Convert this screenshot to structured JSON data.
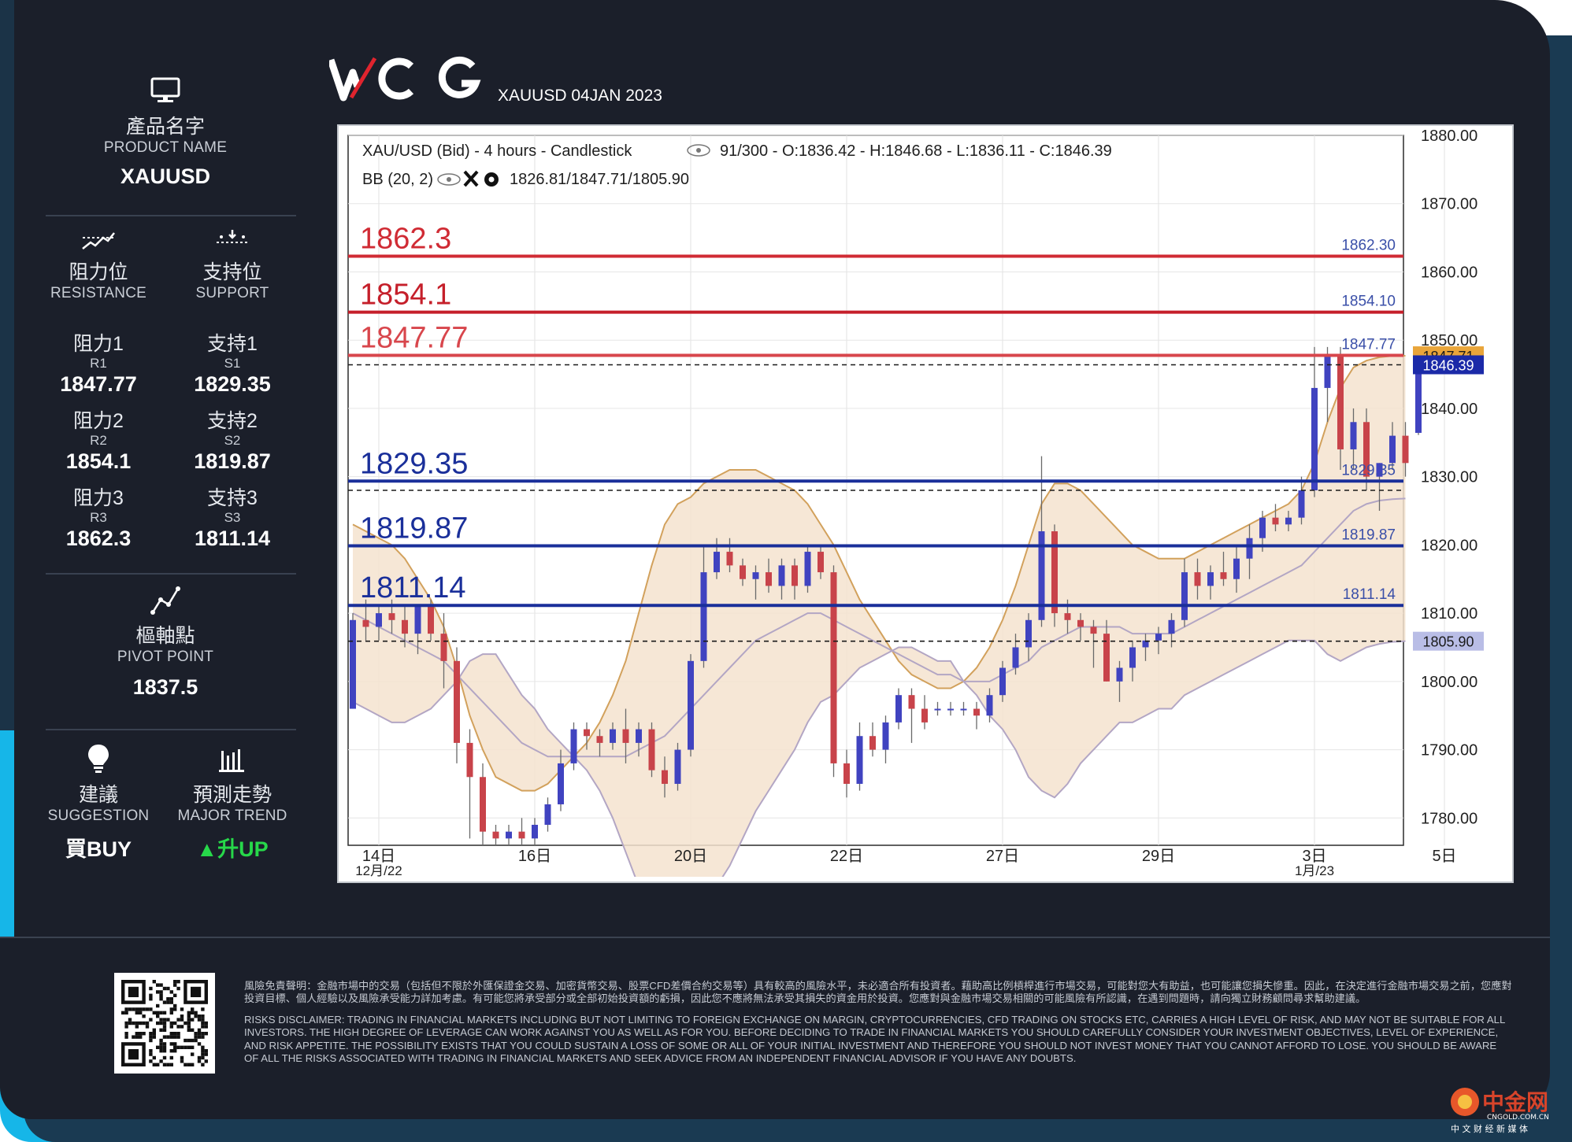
{
  "header": {
    "brand": "WCG",
    "subtitle": "XAUUSD 04JAN 2023"
  },
  "product": {
    "label_zh": "產品名字",
    "label_en": "PRODUCT NAME",
    "value": "XAUUSD"
  },
  "resistance": {
    "label_zh": "阻力位",
    "label_en": "RESISTANCE",
    "items": [
      {
        "zh": "阻力1",
        "code": "R1",
        "value": "1847.77"
      },
      {
        "zh": "阻力2",
        "code": "R2",
        "value": "1854.1"
      },
      {
        "zh": "阻力3",
        "code": "R3",
        "value": "1862.3"
      }
    ]
  },
  "support": {
    "label_zh": "支持位",
    "label_en": "SUPPORT",
    "items": [
      {
        "zh": "支持1",
        "code": "S1",
        "value": "1829.35"
      },
      {
        "zh": "支持2",
        "code": "S2",
        "value": "1819.87"
      },
      {
        "zh": "支持3",
        "code": "S3",
        "value": "1811.14"
      }
    ]
  },
  "pivot": {
    "label_zh": "樞軸點",
    "label_en": "PIVOT POINT",
    "value": "1837.5"
  },
  "suggestion": {
    "label_zh": "建議",
    "label_en": "SUGGESTION",
    "value": "買BUY"
  },
  "trend": {
    "label_zh": "預測走勢",
    "label_en": "MAJOR TREND",
    "value": "▲升UP",
    "color": "#27d84a"
  },
  "chart_data": {
    "type": "candlestick",
    "info_line1": "XAU/USD (Bid) - 4 hours - Candlestick",
    "info_line1_b": "91/300 - O:1836.42 - H:1846.68 - L:1836.11 - C:1846.39",
    "info_line2": "BB (20, 2)",
    "info_line2_b": "1826.81/1847.71/1805.90",
    "ylim": [
      1776,
      1880
    ],
    "yticks": [
      1780,
      1790,
      1800,
      1810,
      1820,
      1830,
      1840,
      1850,
      1860,
      1870,
      1880
    ],
    "ytick_labels": [
      "1780.00",
      "1790.00",
      "1800.00",
      "1810.00",
      "1820.00",
      "1830.00",
      "1840.00",
      "1850.00",
      "1860.00",
      "1870.00",
      "1880.00"
    ],
    "xticks": [
      {
        "index": 2,
        "label": "14日",
        "sub": "12月/22"
      },
      {
        "index": 14,
        "label": "16日",
        "sub": ""
      },
      {
        "index": 26,
        "label": "20日",
        "sub": ""
      },
      {
        "index": 38,
        "label": "22日",
        "sub": ""
      },
      {
        "index": 50,
        "label": "27日",
        "sub": ""
      },
      {
        "index": 62,
        "label": "29日",
        "sub": ""
      },
      {
        "index": 74,
        "label": "3日",
        "sub": "1月/23"
      },
      {
        "index": 84,
        "label": "5日",
        "sub": ""
      }
    ],
    "levels": [
      {
        "value": 1862.3,
        "label": "1862.3",
        "right_label": "1862.30",
        "color": "#d02b34"
      },
      {
        "value": 1854.1,
        "label": "1854.1",
        "right_label": "1854.10",
        "color": "#c51f2a"
      },
      {
        "value": 1847.77,
        "label": "1847.77",
        "right_label": "1847.77",
        "color": "#d8464c"
      },
      {
        "value": 1829.35,
        "label": "1829.35",
        "right_label": "1829.35",
        "color": "#1a2f9a"
      },
      {
        "value": 1819.87,
        "label": "1819.87",
        "right_label": "1819.87",
        "color": "#1a2f9a"
      },
      {
        "value": 1811.14,
        "label": "1811.14",
        "right_label": "1811.14",
        "color": "#1a2f9a"
      }
    ],
    "dashed": [
      1846.39,
      1828.0,
      1805.9
    ],
    "axis_badges": [
      {
        "value": 1847.71,
        "text": "1847.71",
        "bg": "#e9a53a",
        "fg": "#1b1b1b"
      },
      {
        "value": 1846.39,
        "text": "1846.39",
        "bg": "#1b2aa8",
        "fg": "#ffffff"
      },
      {
        "value": 1805.9,
        "text": "1805.90",
        "bg": "#b9bde6",
        "fg": "#1b1b1b"
      }
    ],
    "candles": [
      [
        1796,
        1810,
        1796,
        1809
      ],
      [
        1809,
        1812,
        1806,
        1808
      ],
      [
        1808,
        1811,
        1806,
        1810
      ],
      [
        1810,
        1812,
        1807,
        1809
      ],
      [
        1809,
        1811,
        1805,
        1807
      ],
      [
        1807,
        1811,
        1804,
        1811
      ],
      [
        1811,
        1812,
        1806,
        1807
      ],
      [
        1807,
        1810,
        1799,
        1803
      ],
      [
        1803,
        1805,
        1788,
        1791
      ],
      [
        1791,
        1793,
        1777,
        1786
      ],
      [
        1786,
        1788,
        1776,
        1778
      ],
      [
        1778,
        1779,
        1776,
        1777
      ],
      [
        1777,
        1779,
        1776,
        1778
      ],
      [
        1778,
        1780,
        1776,
        1777
      ],
      [
        1777,
        1780,
        1776,
        1779
      ],
      [
        1779,
        1783,
        1778,
        1782
      ],
      [
        1782,
        1790,
        1781,
        1788
      ],
      [
        1788,
        1794,
        1787,
        1793
      ],
      [
        1793,
        1794,
        1790,
        1792
      ],
      [
        1792,
        1793,
        1789,
        1791
      ],
      [
        1791,
        1794,
        1790,
        1793
      ],
      [
        1793,
        1796,
        1788,
        1791
      ],
      [
        1791,
        1794,
        1789,
        1793
      ],
      [
        1793,
        1794,
        1786,
        1787
      ],
      [
        1787,
        1789,
        1783,
        1785
      ],
      [
        1785,
        1791,
        1784,
        1790
      ],
      [
        1790,
        1804,
        1789,
        1803
      ],
      [
        1803,
        1820,
        1802,
        1816
      ],
      [
        1816,
        1821,
        1815,
        1819
      ],
      [
        1819,
        1821,
        1816,
        1817
      ],
      [
        1817,
        1818,
        1814,
        1815
      ],
      [
        1815,
        1817,
        1812,
        1816
      ],
      [
        1816,
        1818,
        1813,
        1814
      ],
      [
        1814,
        1818,
        1812,
        1817
      ],
      [
        1817,
        1818,
        1812,
        1814
      ],
      [
        1814,
        1820,
        1813,
        1819
      ],
      [
        1819,
        1820,
        1815,
        1816
      ],
      [
        1816,
        1817,
        1786,
        1788
      ],
      [
        1788,
        1790,
        1783,
        1785
      ],
      [
        1785,
        1794,
        1784,
        1792
      ],
      [
        1792,
        1794,
        1789,
        1790
      ],
      [
        1790,
        1795,
        1788,
        1794
      ],
      [
        1794,
        1799,
        1793,
        1798
      ],
      [
        1798,
        1799,
        1791,
        1796
      ],
      [
        1796,
        1798,
        1793,
        1794
      ],
      [
        1796,
        1797,
        1795,
        1796
      ],
      [
        1796,
        1797,
        1795,
        1796
      ],
      [
        1796,
        1797,
        1795,
        1796
      ],
      [
        1796,
        1797,
        1793,
        1795
      ],
      [
        1795,
        1799,
        1794,
        1798
      ],
      [
        1798,
        1803,
        1797,
        1802
      ],
      [
        1802,
        1807,
        1801,
        1805
      ],
      [
        1805,
        1810,
        1803,
        1809
      ],
      [
        1809,
        1833,
        1808,
        1822
      ],
      [
        1822,
        1823,
        1808,
        1810
      ],
      [
        1810,
        1812,
        1807,
        1809
      ],
      [
        1809,
        1810,
        1806,
        1808
      ],
      [
        1808,
        1809,
        1802,
        1807
      ],
      [
        1807,
        1809,
        1800,
        1800
      ],
      [
        1800,
        1803,
        1797,
        1802
      ],
      [
        1802,
        1806,
        1800,
        1805
      ],
      [
        1805,
        1807,
        1803,
        1806
      ],
      [
        1806,
        1808,
        1804,
        1807
      ],
      [
        1807,
        1810,
        1805,
        1809
      ],
      [
        1809,
        1818,
        1808,
        1816
      ],
      [
        1816,
        1818,
        1812,
        1814
      ],
      [
        1814,
        1817,
        1812,
        1816
      ],
      [
        1816,
        1819,
        1814,
        1815
      ],
      [
        1815,
        1820,
        1813,
        1818
      ],
      [
        1818,
        1823,
        1815,
        1821
      ],
      [
        1821,
        1825,
        1819,
        1824
      ],
      [
        1824,
        1826,
        1822,
        1823
      ],
      [
        1823,
        1825,
        1822,
        1824
      ],
      [
        1824,
        1830,
        1823,
        1828
      ],
      [
        1828,
        1849,
        1827,
        1843
      ],
      [
        1843,
        1849,
        1838,
        1848
      ],
      [
        1848,
        1849,
        1831,
        1834
      ],
      [
        1834,
        1840,
        1831,
        1838
      ],
      [
        1838,
        1840,
        1828,
        1830
      ],
      [
        1830,
        1832,
        1825,
        1832
      ],
      [
        1832,
        1838,
        1831,
        1836
      ],
      [
        1836,
        1838,
        1830,
        1832
      ],
      [
        1836.42,
        1846.68,
        1836.11,
        1846.39
      ]
    ],
    "bb_upper": [
      1823,
      1822,
      1821,
      1820,
      1818,
      1815,
      1812,
      1808,
      1802,
      1795,
      1790,
      1786,
      1785,
      1784,
      1784,
      1785,
      1787,
      1789,
      1791,
      1794,
      1798,
      1803,
      1810,
      1817,
      1823,
      1826,
      1827,
      1829,
      1830,
      1831,
      1831,
      1831,
      1830,
      1829,
      1828,
      1826,
      1823,
      1820,
      1816,
      1812,
      1809,
      1806,
      1803,
      1801,
      1800,
      1799,
      1799,
      1800,
      1802,
      1805,
      1809,
      1814,
      1820,
      1826,
      1829,
      1829,
      1828,
      1826,
      1824,
      1822,
      1820,
      1819,
      1818,
      1818,
      1818,
      1819,
      1820,
      1821,
      1822,
      1823,
      1824,
      1825,
      1826,
      1828,
      1832,
      1838,
      1843,
      1846,
      1847,
      1847.5,
      1847.7,
      1847.71
    ],
    "bb_middle": [
      1810,
      1809,
      1808,
      1807,
      1806,
      1805,
      1804,
      1803,
      1801,
      1799,
      1797,
      1795,
      1793,
      1791,
      1790,
      1789,
      1789,
      1789,
      1789,
      1789,
      1789,
      1789,
      1790,
      1791,
      1792,
      1794,
      1796,
      1798,
      1800,
      1802,
      1804,
      1806,
      1807,
      1808,
      1809,
      1810,
      1810,
      1809,
      1808,
      1807,
      1806,
      1805,
      1804,
      1803,
      1802,
      1801,
      1801,
      1800,
      1800,
      1800,
      1801,
      1802,
      1803,
      1805,
      1806,
      1807,
      1808,
      1808,
      1808,
      1808,
      1807,
      1807,
      1807,
      1807,
      1808,
      1809,
      1810,
      1811,
      1812,
      1813,
      1814,
      1815,
      1816,
      1817,
      1819,
      1821,
      1823,
      1825,
      1826,
      1826.5,
      1826.7,
      1826.81
    ],
    "bb_lower": [
      1797,
      1796,
      1795,
      1794,
      1794,
      1795,
      1796,
      1798,
      1800,
      1803,
      1804,
      1804,
      1801,
      1798,
      1796,
      1793,
      1791,
      1789,
      1787,
      1784,
      1780,
      1775,
      1770,
      1765,
      1761,
      1762,
      1765,
      1767,
      1770,
      1773,
      1777,
      1781,
      1784,
      1787,
      1790,
      1794,
      1797,
      1798,
      1800,
      1802,
      1803,
      1804,
      1805,
      1805,
      1804,
      1803,
      1803,
      1800,
      1798,
      1795,
      1793,
      1790,
      1786,
      1784,
      1783,
      1785,
      1788,
      1790,
      1792,
      1794,
      1794,
      1795,
      1796,
      1796,
      1798,
      1799,
      1800,
      1801,
      1802,
      1803,
      1804,
      1805,
      1806,
      1806,
      1806,
      1804,
      1803,
      1804,
      1805,
      1805.5,
      1805.8,
      1805.9
    ]
  },
  "disclaimer": {
    "zh": "風險免責聲明：金融市場中的交易（包括但不限於外匯保證金交易、加密貨幣交易、股票CFD差價合約交易等）具有較高的風險水平，未必適合所有投資者。藉助高比例槓桿進行市場交易，可能對您大有助益，也可能讓您損失慘重。因此，在決定進行金融市場交易之前，您應對投資目標、個人經驗以及風險承受能力詳加考慮。有可能您將承受部分或全部初始投資額的虧損，因此您不應將無法承受其損失的資金用於投資。您應對與金融市場交易相關的可能風險有所認識，在遇到問題時，請向獨立財務顧問尋求幫助建議。",
    "en": "RISKS DISCLAIMER: TRADING IN FINANCIAL MARKETS INCLUDING BUT NOT LIMITING TO FOREIGN EXCHANGE ON MARGIN, CRYPTOCURRENCIES, CFD TRADING ON STOCKS ETC, CARRIES A HIGH LEVEL OF RISK, AND MAY NOT BE SUITABLE FOR ALL INVESTORS. THE HIGH DEGREE OF LEVERAGE CAN WORK AGAINST YOU AS WELL AS FOR YOU. BEFORE DECIDING TO TRADE IN FINANCIAL MARKETS YOU SHOULD CAREFULLY CONSIDER YOUR INVESTMENT OBJECTIVES, LEVEL OF EXPERIENCE, AND RISK APPETITE. THE POSSIBILITY EXISTS THAT YOU COULD SUSTAIN A LOSS OF SOME OR ALL OF YOUR INITIAL INVESTMENT AND THEREFORE YOU SHOULD NOT INVEST MONEY THAT YOU CANNOT AFFORD TO LOSE. YOU SHOULD BE AWARE OF ALL THE RISKS ASSOCIATED WITH TRADING IN FINANCIAL MARKETS AND SEEK ADVICE FROM AN INDEPENDENT FINANCIAL ADVISOR IF YOU HAVE ANY DOUBTS."
  },
  "watermark": {
    "name": "中金网",
    "domain": "CNGOLD.COM.CN",
    "tagline": "中 文 财 经 新 媒 体"
  }
}
